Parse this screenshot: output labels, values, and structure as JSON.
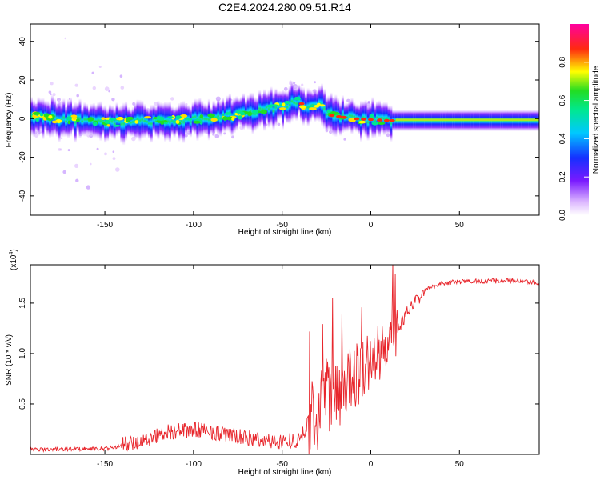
{
  "title": "C2E4.2024.280.09.51.R14",
  "colors": {
    "snr_line": "#e8262c",
    "background": "#ffffff",
    "axis": "#000000"
  },
  "chart_data": [
    {
      "type": "heatmap",
      "xlabel": "Height of straight line (km)",
      "ylabel": "Frequency (Hz)",
      "xlim": [
        -192,
        95
      ],
      "ylim": [
        -50,
        49
      ],
      "x_ticks": [
        -150,
        -100,
        -50,
        0,
        50
      ],
      "y_ticks": [
        -40,
        -20,
        0,
        20,
        40
      ],
      "colorbar": {
        "label": "Normalized spectral amplitude",
        "range": [
          0,
          1
        ],
        "ticks": [
          "0.0",
          "0.2",
          "0.4",
          "0.6",
          "0.8"
        ],
        "colormap": "rainbow (white-violet-blue-cyan-green-yellow-red-magenta)"
      },
      "ridge_center_hz": [
        {
          "x": -190,
          "y": 1
        },
        {
          "x": -150,
          "y": -2
        },
        {
          "x": -120,
          "y": -1
        },
        {
          "x": -90,
          "y": 0
        },
        {
          "x": -70,
          "y": 3
        },
        {
          "x": -50,
          "y": 6
        },
        {
          "x": -42,
          "y": 9
        },
        {
          "x": -35,
          "y": 6
        },
        {
          "x": -28,
          "y": 8
        },
        {
          "x": -25,
          "y": 2
        },
        {
          "x": -10,
          "y": 0
        },
        {
          "x": 10,
          "y": -1
        },
        {
          "x": 40,
          "y": -1
        },
        {
          "x": 94,
          "y": -1
        }
      ],
      "grid": false
    },
    {
      "type": "line",
      "xlabel": "Height of straight line (km)",
      "ylabel": "SNR (10 * v/v)",
      "y_multiplier": "(x10^4)",
      "xlim": [
        -192,
        95
      ],
      "ylim": [
        0,
        1.88
      ],
      "x_ticks": [
        -150,
        -100,
        -50,
        0,
        50
      ],
      "y_ticks": [
        "0.5",
        "1.0",
        "1.5"
      ],
      "series": [
        {
          "values_x10e4": [
            {
              "x": -190,
              "y": 0.04
            },
            {
              "x": -150,
              "y": 0.05
            },
            {
              "x": -130,
              "y": 0.1
            },
            {
              "x": -115,
              "y": 0.2
            },
            {
              "x": -95,
              "y": 0.22
            },
            {
              "x": -75,
              "y": 0.15
            },
            {
              "x": -55,
              "y": 0.1
            },
            {
              "x": -40,
              "y": 0.12
            },
            {
              "x": -32,
              "y": 0.4
            },
            {
              "x": -25,
              "y": 0.55
            },
            {
              "x": -15,
              "y": 0.7
            },
            {
              "x": -5,
              "y": 0.85
            },
            {
              "x": 5,
              "y": 1.0
            },
            {
              "x": 12,
              "y": 1.1
            },
            {
              "x": 20,
              "y": 1.4
            },
            {
              "x": 30,
              "y": 1.62
            },
            {
              "x": 40,
              "y": 1.7
            },
            {
              "x": 60,
              "y": 1.72
            },
            {
              "x": 80,
              "y": 1.72
            },
            {
              "x": 94,
              "y": 1.7
            }
          ]
        }
      ],
      "grid": false
    }
  ]
}
